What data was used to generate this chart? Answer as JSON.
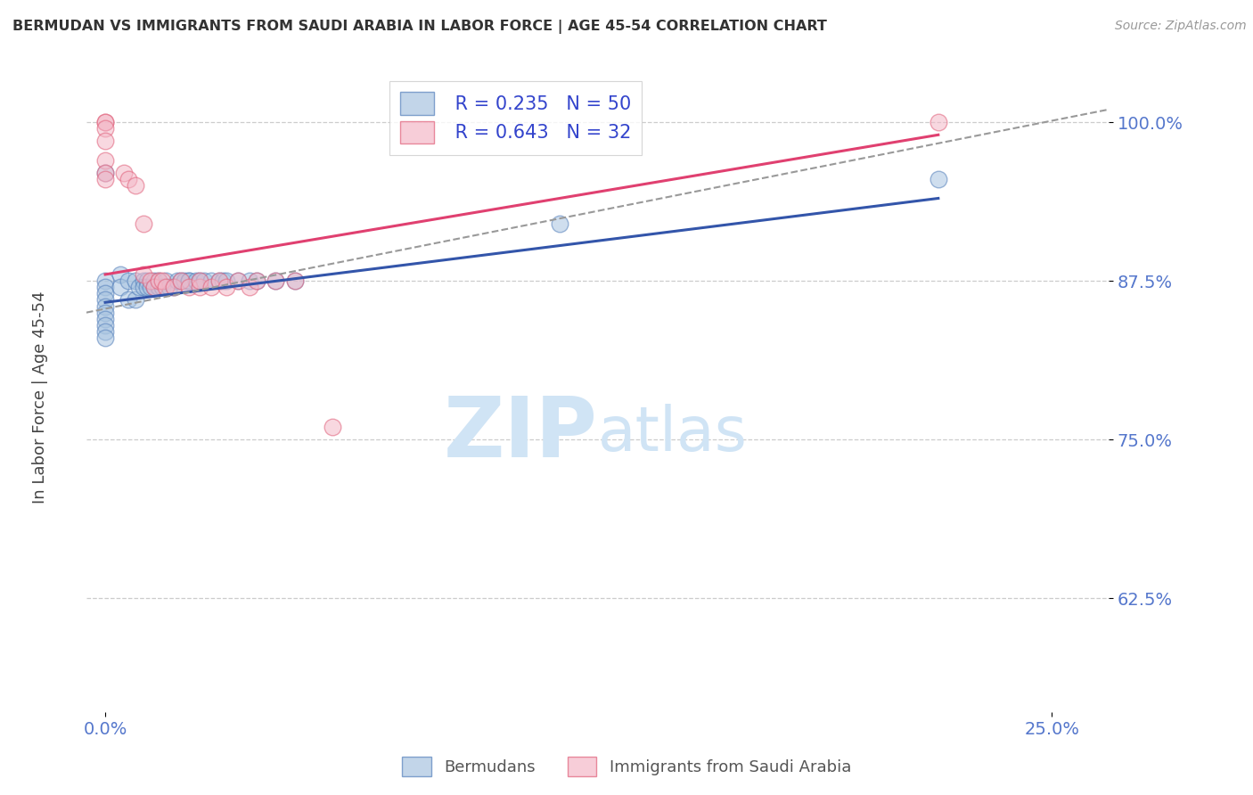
{
  "title": "BERMUDAN VS IMMIGRANTS FROM SAUDI ARABIA IN LABOR FORCE | AGE 45-54 CORRELATION CHART",
  "source": "Source: ZipAtlas.com",
  "ylabel_label": "In Labor Force | Age 45-54",
  "x_tick_labels": [
    "0.0%",
    "25.0%"
  ],
  "y_tick_labels": [
    "62.5%",
    "75.0%",
    "87.5%",
    "100.0%"
  ],
  "xlim": [
    -0.005,
    0.265
  ],
  "ylim": [
    0.535,
    1.045
  ],
  "y_ticks": [
    0.625,
    0.75,
    0.875,
    1.0
  ],
  "x_ticks": [
    0.0,
    0.25
  ],
  "grid_color": "#cccccc",
  "background_color": "#ffffff",
  "blue_fill": "#a8c4e0",
  "pink_fill": "#f4b8c8",
  "blue_edge": "#5580bb",
  "pink_edge": "#e0607a",
  "blue_line_color": "#3355aa",
  "pink_line_color": "#e04070",
  "dashed_line_color": "#999999",
  "tick_color": "#5577cc",
  "legend_R_blue": "0.235",
  "legend_N_blue": "50",
  "legend_R_pink": "0.643",
  "legend_N_pink": "32",
  "legend_text_color": "#3344cc",
  "watermark_zip": "ZIP",
  "watermark_atlas": "atlas",
  "watermark_color": "#d0e4f5",
  "bermudans_x": [
    0.0,
    0.0,
    0.0,
    0.0,
    0.0,
    0.0,
    0.0,
    0.0,
    0.0,
    0.0,
    0.0,
    0.004,
    0.004,
    0.006,
    0.006,
    0.008,
    0.008,
    0.009,
    0.01,
    0.01,
    0.011,
    0.011,
    0.012,
    0.013,
    0.013,
    0.014,
    0.014,
    0.015,
    0.016,
    0.017,
    0.018,
    0.019,
    0.02,
    0.021,
    0.022,
    0.022,
    0.024,
    0.025,
    0.026,
    0.028,
    0.03,
    0.031,
    0.032,
    0.035,
    0.038,
    0.04,
    0.045,
    0.05,
    0.12,
    0.22
  ],
  "bermudans_y": [
    0.875,
    0.87,
    0.865,
    0.86,
    0.855,
    0.85,
    0.845,
    0.84,
    0.835,
    0.83,
    0.96,
    0.88,
    0.87,
    0.875,
    0.86,
    0.875,
    0.86,
    0.87,
    0.875,
    0.87,
    0.875,
    0.87,
    0.87,
    0.875,
    0.87,
    0.875,
    0.87,
    0.87,
    0.875,
    0.87,
    0.87,
    0.875,
    0.875,
    0.875,
    0.875,
    0.875,
    0.875,
    0.875,
    0.875,
    0.875,
    0.875,
    0.875,
    0.875,
    0.875,
    0.875,
    0.875,
    0.875,
    0.875,
    0.92,
    0.955
  ],
  "saudi_x": [
    0.0,
    0.0,
    0.0,
    0.0,
    0.0,
    0.0,
    0.0,
    0.005,
    0.006,
    0.008,
    0.01,
    0.01,
    0.012,
    0.013,
    0.014,
    0.015,
    0.016,
    0.018,
    0.02,
    0.022,
    0.025,
    0.025,
    0.028,
    0.03,
    0.032,
    0.035,
    0.038,
    0.04,
    0.045,
    0.05,
    0.06,
    0.22
  ],
  "saudi_y": [
    1.0,
    1.0,
    0.995,
    0.985,
    0.97,
    0.96,
    0.955,
    0.96,
    0.955,
    0.95,
    0.92,
    0.88,
    0.875,
    0.87,
    0.875,
    0.875,
    0.87,
    0.87,
    0.875,
    0.87,
    0.87,
    0.875,
    0.87,
    0.875,
    0.87,
    0.875,
    0.87,
    0.875,
    0.875,
    0.875,
    0.76,
    1.0
  ],
  "blue_trend_x": [
    0.0,
    0.22
  ],
  "blue_trend_y": [
    0.858,
    0.94
  ],
  "pink_trend_x": [
    0.0,
    0.22
  ],
  "pink_trend_y": [
    0.88,
    0.99
  ],
  "dashed_trend_x": [
    -0.005,
    0.265
  ],
  "dashed_trend_y": [
    0.85,
    1.01
  ]
}
